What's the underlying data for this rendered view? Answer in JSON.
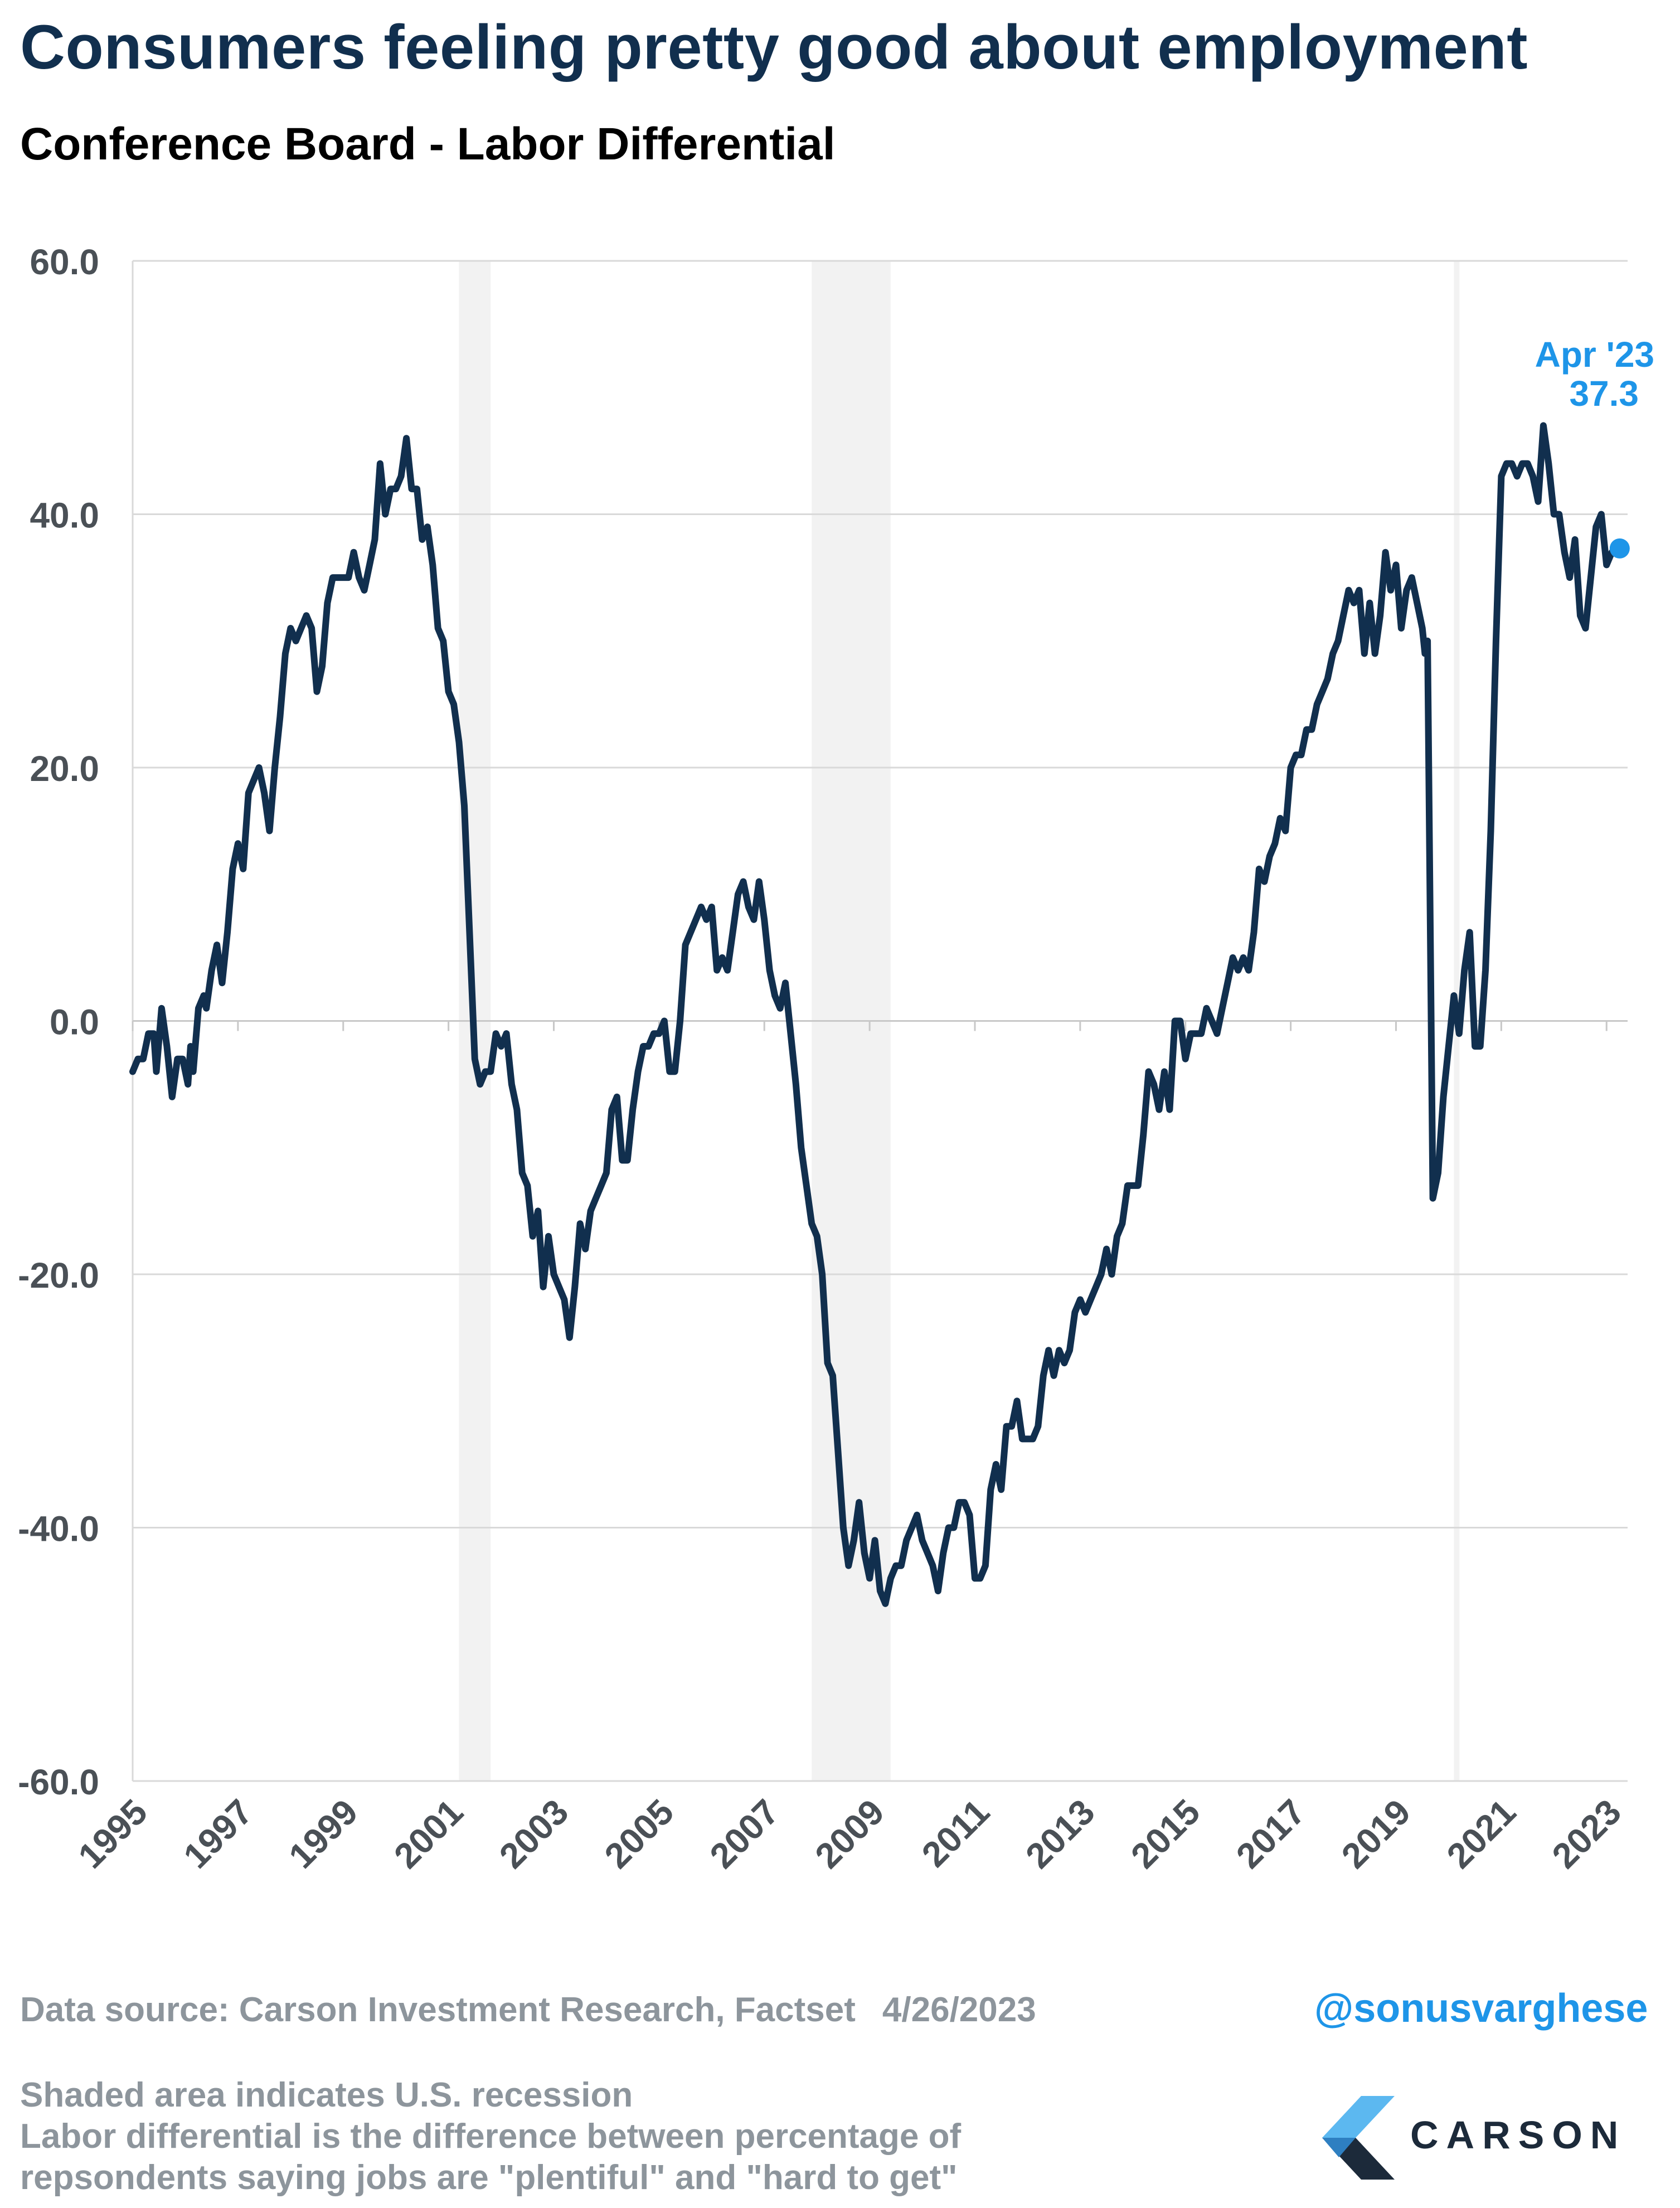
{
  "title": "Consumers feeling pretty good about employment",
  "subtitle": "Conference Board - Labor Differential",
  "source": "Data source: Carson Investment Research, Factset",
  "source_date": "4/26/2023",
  "handle": "@sonusvarghese",
  "notes": [
    "Shaded area indicates U.S. recession",
    "Labor differential is the difference between percentage of",
    "repsondents saying jobs are \"plentiful\" and \"hard to get\""
  ],
  "logo_text": "CARSON",
  "colors": {
    "title": "#112f4e",
    "line": "#112f4e",
    "highlight": "#1e95e8",
    "recession": "#f2f2f2",
    "muted_text": "#8d959c",
    "axis_text": "#4a5056"
  },
  "chart_data": {
    "type": "line",
    "title": "Conference Board - Labor Differential",
    "ylim": [
      -60,
      60
    ],
    "yticks": [
      "60.0",
      "40.0",
      "20.0",
      "0.0",
      "-20.0",
      "-40.0",
      "-60.0"
    ],
    "xlim": [
      1995.0,
      2023.4
    ],
    "xticks": [
      "1995",
      "1997",
      "1999",
      "2001",
      "2003",
      "2005",
      "2007",
      "2009",
      "2011",
      "2013",
      "2015",
      "2017",
      "2019",
      "2021",
      "2023"
    ],
    "grid": "horizontal",
    "recessions": [
      [
        2001.2,
        2001.8
      ],
      [
        2007.9,
        2009.4
      ],
      [
        2020.1,
        2020.2
      ]
    ],
    "annotation": {
      "label": "Apr '23",
      "value_label": "37.3",
      "x": 2023.25,
      "y": 37.3
    },
    "series": [
      {
        "points": [
          [
            1995.0,
            -4
          ],
          [
            1995.1,
            -3
          ],
          [
            1995.2,
            -3
          ],
          [
            1995.3,
            -1
          ],
          [
            1995.4,
            -1
          ],
          [
            1995.45,
            -4
          ],
          [
            1995.55,
            1
          ],
          [
            1995.65,
            -2
          ],
          [
            1995.75,
            -6
          ],
          [
            1995.85,
            -3
          ],
          [
            1995.95,
            -3
          ],
          [
            1996.05,
            -5
          ],
          [
            1996.1,
            -2
          ],
          [
            1996.15,
            -4
          ],
          [
            1996.25,
            1
          ],
          [
            1996.35,
            2
          ],
          [
            1996.4,
            1
          ],
          [
            1996.5,
            4
          ],
          [
            1996.6,
            6
          ],
          [
            1996.7,
            3
          ],
          [
            1996.8,
            7
          ],
          [
            1996.9,
            12
          ],
          [
            1997.0,
            14
          ],
          [
            1997.1,
            12
          ],
          [
            1997.2,
            18
          ],
          [
            1997.3,
            19
          ],
          [
            1997.4,
            20
          ],
          [
            1997.5,
            18
          ],
          [
            1997.6,
            15
          ],
          [
            1997.7,
            20
          ],
          [
            1997.8,
            24
          ],
          [
            1997.9,
            29
          ],
          [
            1998.0,
            31
          ],
          [
            1998.1,
            30
          ],
          [
            1998.2,
            31
          ],
          [
            1998.3,
            32
          ],
          [
            1998.4,
            31
          ],
          [
            1998.5,
            26
          ],
          [
            1998.6,
            28
          ],
          [
            1998.7,
            33
          ],
          [
            1998.8,
            35
          ],
          [
            1998.9,
            35
          ],
          [
            1999.0,
            35
          ],
          [
            1999.1,
            35
          ],
          [
            1999.2,
            37
          ],
          [
            1999.3,
            35
          ],
          [
            1999.4,
            34
          ],
          [
            1999.5,
            36
          ],
          [
            1999.6,
            38
          ],
          [
            1999.7,
            44
          ],
          [
            1999.8,
            40
          ],
          [
            1999.9,
            42
          ],
          [
            2000.0,
            42
          ],
          [
            2000.1,
            43
          ],
          [
            2000.2,
            46
          ],
          [
            2000.3,
            42
          ],
          [
            2000.4,
            42
          ],
          [
            2000.5,
            38
          ],
          [
            2000.6,
            39
          ],
          [
            2000.7,
            36
          ],
          [
            2000.8,
            31
          ],
          [
            2000.9,
            30
          ],
          [
            2001.0,
            26
          ],
          [
            2001.1,
            25
          ],
          [
            2001.2,
            22
          ],
          [
            2001.3,
            17
          ],
          [
            2001.4,
            7
          ],
          [
            2001.5,
            -3
          ],
          [
            2001.6,
            -5
          ],
          [
            2001.7,
            -4
          ],
          [
            2001.8,
            -4
          ],
          [
            2001.9,
            -1
          ],
          [
            2002.0,
            -2
          ],
          [
            2002.1,
            -1
          ],
          [
            2002.2,
            -5
          ],
          [
            2002.3,
            -7
          ],
          [
            2002.4,
            -12
          ],
          [
            2002.5,
            -13
          ],
          [
            2002.6,
            -17
          ],
          [
            2002.7,
            -15
          ],
          [
            2002.8,
            -21
          ],
          [
            2002.9,
            -17
          ],
          [
            2003.0,
            -20
          ],
          [
            2003.1,
            -21
          ],
          [
            2003.2,
            -22
          ],
          [
            2003.3,
            -25
          ],
          [
            2003.4,
            -21
          ],
          [
            2003.5,
            -16
          ],
          [
            2003.6,
            -18
          ],
          [
            2003.7,
            -15
          ],
          [
            2003.8,
            -14
          ],
          [
            2003.9,
            -13
          ],
          [
            2004.0,
            -12
          ],
          [
            2004.1,
            -7
          ],
          [
            2004.2,
            -6
          ],
          [
            2004.3,
            -11
          ],
          [
            2004.4,
            -11
          ],
          [
            2004.5,
            -7
          ],
          [
            2004.6,
            -4
          ],
          [
            2004.7,
            -2
          ],
          [
            2004.8,
            -2
          ],
          [
            2004.9,
            -1
          ],
          [
            2005.0,
            -1
          ],
          [
            2005.1,
            0
          ],
          [
            2005.2,
            -4
          ],
          [
            2005.3,
            -4
          ],
          [
            2005.4,
            0
          ],
          [
            2005.5,
            6
          ],
          [
            2005.6,
            7
          ],
          [
            2005.7,
            8
          ],
          [
            2005.8,
            9
          ],
          [
            2005.9,
            8
          ],
          [
            2006.0,
            9
          ],
          [
            2006.1,
            4
          ],
          [
            2006.2,
            5
          ],
          [
            2006.3,
            4
          ],
          [
            2006.4,
            7
          ],
          [
            2006.5,
            10
          ],
          [
            2006.6,
            11
          ],
          [
            2006.7,
            9
          ],
          [
            2006.8,
            8
          ],
          [
            2006.9,
            11
          ],
          [
            2007.0,
            8
          ],
          [
            2007.1,
            4
          ],
          [
            2007.2,
            2
          ],
          [
            2007.3,
            1
          ],
          [
            2007.4,
            3
          ],
          [
            2007.5,
            -1
          ],
          [
            2007.6,
            -5
          ],
          [
            2007.7,
            -10
          ],
          [
            2007.8,
            -13
          ],
          [
            2007.9,
            -16
          ],
          [
            2008.0,
            -17
          ],
          [
            2008.1,
            -20
          ],
          [
            2008.2,
            -27
          ],
          [
            2008.3,
            -28
          ],
          [
            2008.4,
            -34
          ],
          [
            2008.5,
            -40
          ],
          [
            2008.6,
            -43
          ],
          [
            2008.7,
            -41
          ],
          [
            2008.8,
            -38
          ],
          [
            2008.9,
            -42
          ],
          [
            2009.0,
            -44
          ],
          [
            2009.1,
            -41
          ],
          [
            2009.2,
            -45
          ],
          [
            2009.3,
            -46
          ],
          [
            2009.4,
            -44
          ],
          [
            2009.5,
            -43
          ],
          [
            2009.6,
            -43
          ],
          [
            2009.7,
            -41
          ],
          [
            2009.8,
            -40
          ],
          [
            2009.9,
            -39
          ],
          [
            2010.0,
            -41
          ],
          [
            2010.1,
            -42
          ],
          [
            2010.2,
            -43
          ],
          [
            2010.3,
            -45
          ],
          [
            2010.4,
            -42
          ],
          [
            2010.5,
            -40
          ],
          [
            2010.6,
            -40
          ],
          [
            2010.7,
            -38
          ],
          [
            2010.8,
            -38
          ],
          [
            2010.9,
            -39
          ],
          [
            2011.0,
            -44
          ],
          [
            2011.1,
            -44
          ],
          [
            2011.2,
            -43
          ],
          [
            2011.3,
            -37
          ],
          [
            2011.4,
            -35
          ],
          [
            2011.5,
            -37
          ],
          [
            2011.6,
            -32
          ],
          [
            2011.7,
            -32
          ],
          [
            2011.8,
            -30
          ],
          [
            2011.9,
            -33
          ],
          [
            2012.0,
            -33
          ],
          [
            2012.1,
            -33
          ],
          [
            2012.2,
            -32
          ],
          [
            2012.3,
            -28
          ],
          [
            2012.4,
            -26
          ],
          [
            2012.5,
            -28
          ],
          [
            2012.6,
            -26
          ],
          [
            2012.7,
            -27
          ],
          [
            2012.8,
            -26
          ],
          [
            2012.9,
            -23
          ],
          [
            2013.0,
            -22
          ],
          [
            2013.1,
            -23
          ],
          [
            2013.2,
            -22
          ],
          [
            2013.3,
            -21
          ],
          [
            2013.4,
            -20
          ],
          [
            2013.5,
            -18
          ],
          [
            2013.6,
            -20
          ],
          [
            2013.7,
            -17
          ],
          [
            2013.8,
            -16
          ],
          [
            2013.9,
            -13
          ],
          [
            2014.0,
            -13
          ],
          [
            2014.1,
            -13
          ],
          [
            2014.2,
            -9
          ],
          [
            2014.3,
            -4
          ],
          [
            2014.4,
            -5
          ],
          [
            2014.5,
            -7
          ],
          [
            2014.6,
            -4
          ],
          [
            2014.7,
            -7
          ],
          [
            2014.8,
            0
          ],
          [
            2014.9,
            0
          ],
          [
            2015.0,
            -3
          ],
          [
            2015.1,
            -1
          ],
          [
            2015.2,
            -1
          ],
          [
            2015.3,
            -1
          ],
          [
            2015.4,
            1
          ],
          [
            2015.5,
            0
          ],
          [
            2015.6,
            -1
          ],
          [
            2015.7,
            1
          ],
          [
            2015.8,
            3
          ],
          [
            2015.9,
            5
          ],
          [
            2016.0,
            4
          ],
          [
            2016.1,
            5
          ],
          [
            2016.2,
            4
          ],
          [
            2016.3,
            7
          ],
          [
            2016.4,
            12
          ],
          [
            2016.5,
            11
          ],
          [
            2016.6,
            13
          ],
          [
            2016.7,
            14
          ],
          [
            2016.8,
            16
          ],
          [
            2016.9,
            15
          ],
          [
            2017.0,
            20
          ],
          [
            2017.1,
            21
          ],
          [
            2017.2,
            21
          ],
          [
            2017.3,
            23
          ],
          [
            2017.4,
            23
          ],
          [
            2017.5,
            25
          ],
          [
            2017.6,
            26
          ],
          [
            2017.7,
            27
          ],
          [
            2017.8,
            29
          ],
          [
            2017.9,
            30
          ],
          [
            2018.0,
            32
          ],
          [
            2018.1,
            34
          ],
          [
            2018.2,
            33
          ],
          [
            2018.3,
            34
          ],
          [
            2018.4,
            29
          ],
          [
            2018.5,
            33
          ],
          [
            2018.6,
            29
          ],
          [
            2018.7,
            32
          ],
          [
            2018.8,
            37
          ],
          [
            2018.9,
            34
          ],
          [
            2019.0,
            36
          ],
          [
            2019.1,
            31
          ],
          [
            2019.2,
            34
          ],
          [
            2019.3,
            35
          ],
          [
            2019.4,
            33
          ],
          [
            2019.5,
            31
          ],
          [
            2019.55,
            29
          ],
          [
            2019.6,
            30
          ],
          [
            2019.7,
            -14
          ],
          [
            2019.8,
            -12
          ],
          [
            2019.9,
            -6
          ],
          [
            2020.0,
            -2
          ],
          [
            2020.1,
            2
          ],
          [
            2020.2,
            -1
          ],
          [
            2020.3,
            4
          ],
          [
            2020.4,
            7
          ],
          [
            2020.5,
            -2
          ],
          [
            2020.6,
            -2
          ],
          [
            2020.7,
            4
          ],
          [
            2020.8,
            15
          ],
          [
            2020.9,
            30
          ],
          [
            2021.0,
            43
          ],
          [
            2021.1,
            44
          ],
          [
            2021.2,
            44
          ],
          [
            2021.3,
            43
          ],
          [
            2021.4,
            44
          ],
          [
            2021.5,
            44
          ],
          [
            2021.6,
            43
          ],
          [
            2021.7,
            41
          ],
          [
            2021.8,
            47
          ],
          [
            2021.9,
            44
          ],
          [
            2022.0,
            40
          ],
          [
            2022.1,
            40
          ],
          [
            2022.2,
            37
          ],
          [
            2022.3,
            35
          ],
          [
            2022.4,
            38
          ],
          [
            2022.5,
            32
          ],
          [
            2022.6,
            31
          ],
          [
            2022.7,
            35
          ],
          [
            2022.8,
            39
          ],
          [
            2022.9,
            40
          ],
          [
            2023.0,
            36
          ],
          [
            2023.1,
            37
          ],
          [
            2023.25,
            37.3
          ]
        ]
      }
    ]
  }
}
